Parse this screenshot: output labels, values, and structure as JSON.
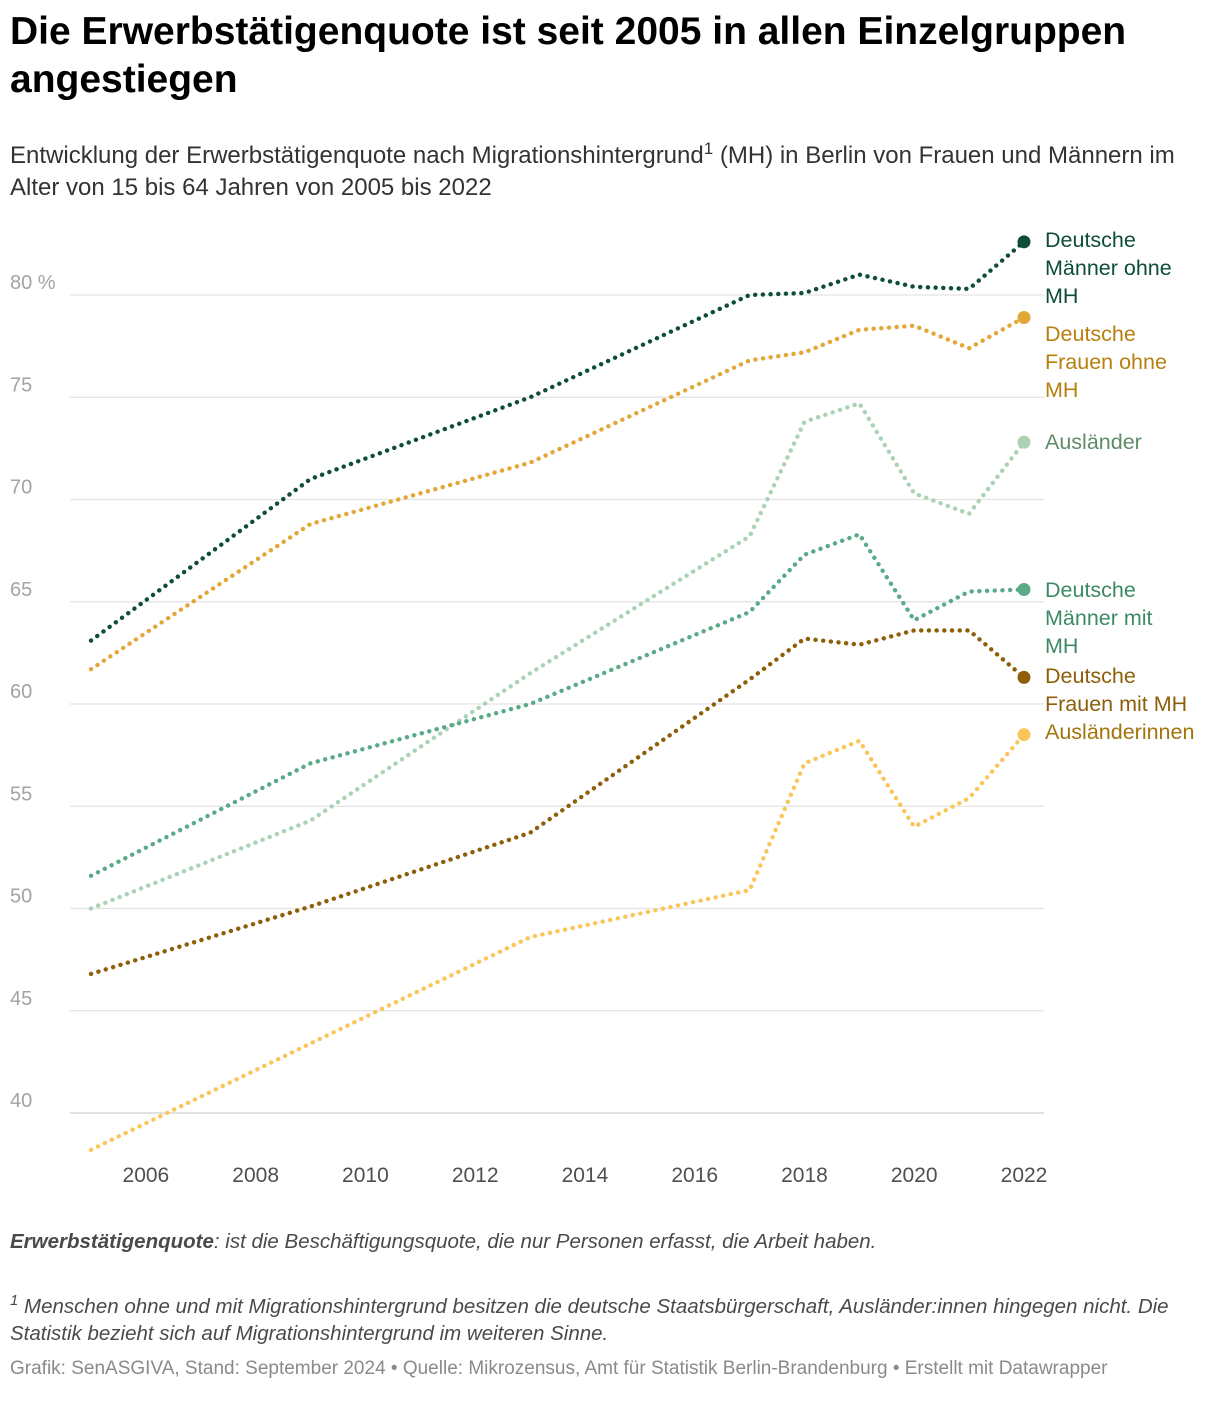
{
  "header": {
    "title": "Die Erwerbstätigenquote ist seit 2005 in allen Einzelgruppen angestiegen",
    "subtitle_part1": "Entwicklung der Erwerbstätigenquote nach Migrationshintergrund",
    "subtitle_sup": "1",
    "subtitle_part2": " (MH) in Berlin von Frauen und Männern im Alter von 15 bis 64 Jahren von 2005 bis 2022"
  },
  "chart_data": {
    "type": "line",
    "title": "Die Erwerbstätigenquote ist seit 2005 in allen Einzelgruppen angestiegen",
    "xlabel": "",
    "ylabel": "",
    "ylim": [
      38,
      82
    ],
    "xlim": [
      2005,
      2022
    ],
    "y_ticks": [
      {
        "value": 80,
        "label": "80 %"
      },
      {
        "value": 75,
        "label": "75"
      },
      {
        "value": 70,
        "label": "70"
      },
      {
        "value": 65,
        "label": "65"
      },
      {
        "value": 60,
        "label": "60"
      },
      {
        "value": 55,
        "label": "55"
      },
      {
        "value": 50,
        "label": "50"
      },
      {
        "value": 45,
        "label": "45"
      },
      {
        "value": 40,
        "label": "40"
      }
    ],
    "x_ticks": [
      {
        "value": 2006,
        "label": "2006"
      },
      {
        "value": 2008,
        "label": "2008"
      },
      {
        "value": 2010,
        "label": "2010"
      },
      {
        "value": 2012,
        "label": "2012"
      },
      {
        "value": 2014,
        "label": "2014"
      },
      {
        "value": 2016,
        "label": "2016"
      },
      {
        "value": 2018,
        "label": "2018"
      },
      {
        "value": 2020,
        "label": "2020"
      },
      {
        "value": 2022,
        "label": "2022"
      }
    ],
    "series": [
      {
        "name": "Deutsche Männer ohne MH",
        "label_lines": [
          "Deutsche",
          "Männer ohne",
          "MH"
        ],
        "color": "#0e4d36",
        "label_color": "#0e4d36",
        "points": [
          [
            2005,
            63.1
          ],
          [
            2009,
            71.0
          ],
          [
            2013,
            75.0
          ],
          [
            2017,
            80.0
          ],
          [
            2018,
            80.1
          ],
          [
            2019,
            81.0
          ],
          [
            2020,
            80.4
          ],
          [
            2021,
            80.3
          ],
          [
            2022,
            82.6
          ]
        ]
      },
      {
        "name": "Deutsche Frauen ohne MH",
        "label_lines": [
          "Deutsche",
          "Frauen ohne",
          "MH"
        ],
        "color": "#e3a737",
        "label_color": "#b87f0e",
        "points": [
          [
            2005,
            61.7
          ],
          [
            2009,
            68.8
          ],
          [
            2013,
            71.8
          ],
          [
            2017,
            76.8
          ],
          [
            2018,
            77.2
          ],
          [
            2019,
            78.3
          ],
          [
            2020,
            78.5
          ],
          [
            2021,
            77.4
          ],
          [
            2022,
            78.9
          ]
        ]
      },
      {
        "name": "Ausländer",
        "label_lines": [
          "Ausländer"
        ],
        "color": "#a9d3b4",
        "label_color": "#5e8c68",
        "points": [
          [
            2005,
            50.0
          ],
          [
            2009,
            54.3
          ],
          [
            2013,
            61.5
          ],
          [
            2017,
            68.2
          ],
          [
            2018,
            73.8
          ],
          [
            2019,
            74.7
          ],
          [
            2020,
            70.3
          ],
          [
            2021,
            69.3
          ],
          [
            2022,
            72.8
          ]
        ]
      },
      {
        "name": "Deutsche Männer mit MH",
        "label_lines": [
          "Deutsche",
          "Männer mit",
          "MH"
        ],
        "color": "#5aaa87",
        "label_color": "#3c8a64",
        "points": [
          [
            2005,
            51.6
          ],
          [
            2009,
            57.1
          ],
          [
            2013,
            60.0
          ],
          [
            2017,
            64.5
          ],
          [
            2018,
            67.3
          ],
          [
            2019,
            68.3
          ],
          [
            2020,
            64.1
          ],
          [
            2021,
            65.5
          ],
          [
            2022,
            65.6
          ]
        ]
      },
      {
        "name": "Deutsche Frauen mit MH",
        "label_lines": [
          "Deutsche",
          "Frauen mit MH"
        ],
        "color": "#8e5e09",
        "label_color": "#8e5e09",
        "points": [
          [
            2005,
            46.8
          ],
          [
            2009,
            50.1
          ],
          [
            2013,
            53.7
          ],
          [
            2017,
            61.2
          ],
          [
            2018,
            63.2
          ],
          [
            2019,
            62.9
          ],
          [
            2020,
            63.6
          ],
          [
            2021,
            63.6
          ],
          [
            2022,
            61.3
          ]
        ]
      },
      {
        "name": "Ausländerinnen",
        "label_lines": [
          "Ausländerinnen"
        ],
        "color": "#fcc559",
        "label_color": "#a2740b",
        "points": [
          [
            2005,
            38.2
          ],
          [
            2009,
            43.4
          ],
          [
            2013,
            48.6
          ],
          [
            2017,
            50.9
          ],
          [
            2018,
            57.1
          ],
          [
            2019,
            58.2
          ],
          [
            2020,
            54.0
          ],
          [
            2021,
            55.4
          ],
          [
            2022,
            58.5
          ]
        ]
      }
    ]
  },
  "notes": {
    "definition_term": "Erwerbstätigenquote",
    "definition_text": ": ist die Beschäftigungsquote, die nur Personen erfasst, die Arbeit haben.",
    "footnote_marker": "1",
    "footnote_text": " Menschen ohne und mit Migrationshintergrund besitzen die deutsche Staatsbürgerschaft, Ausländer:innen hingegen nicht. Die Statistik bezieht sich auf Migrationshintergrund im weiteren Sinne."
  },
  "credit": "Grafik: SenASGIVA, Stand: September 2024 • Quelle: Mikrozensus, Amt für Statistik Berlin-Brandenburg • Erstellt mit Datawrapper"
}
